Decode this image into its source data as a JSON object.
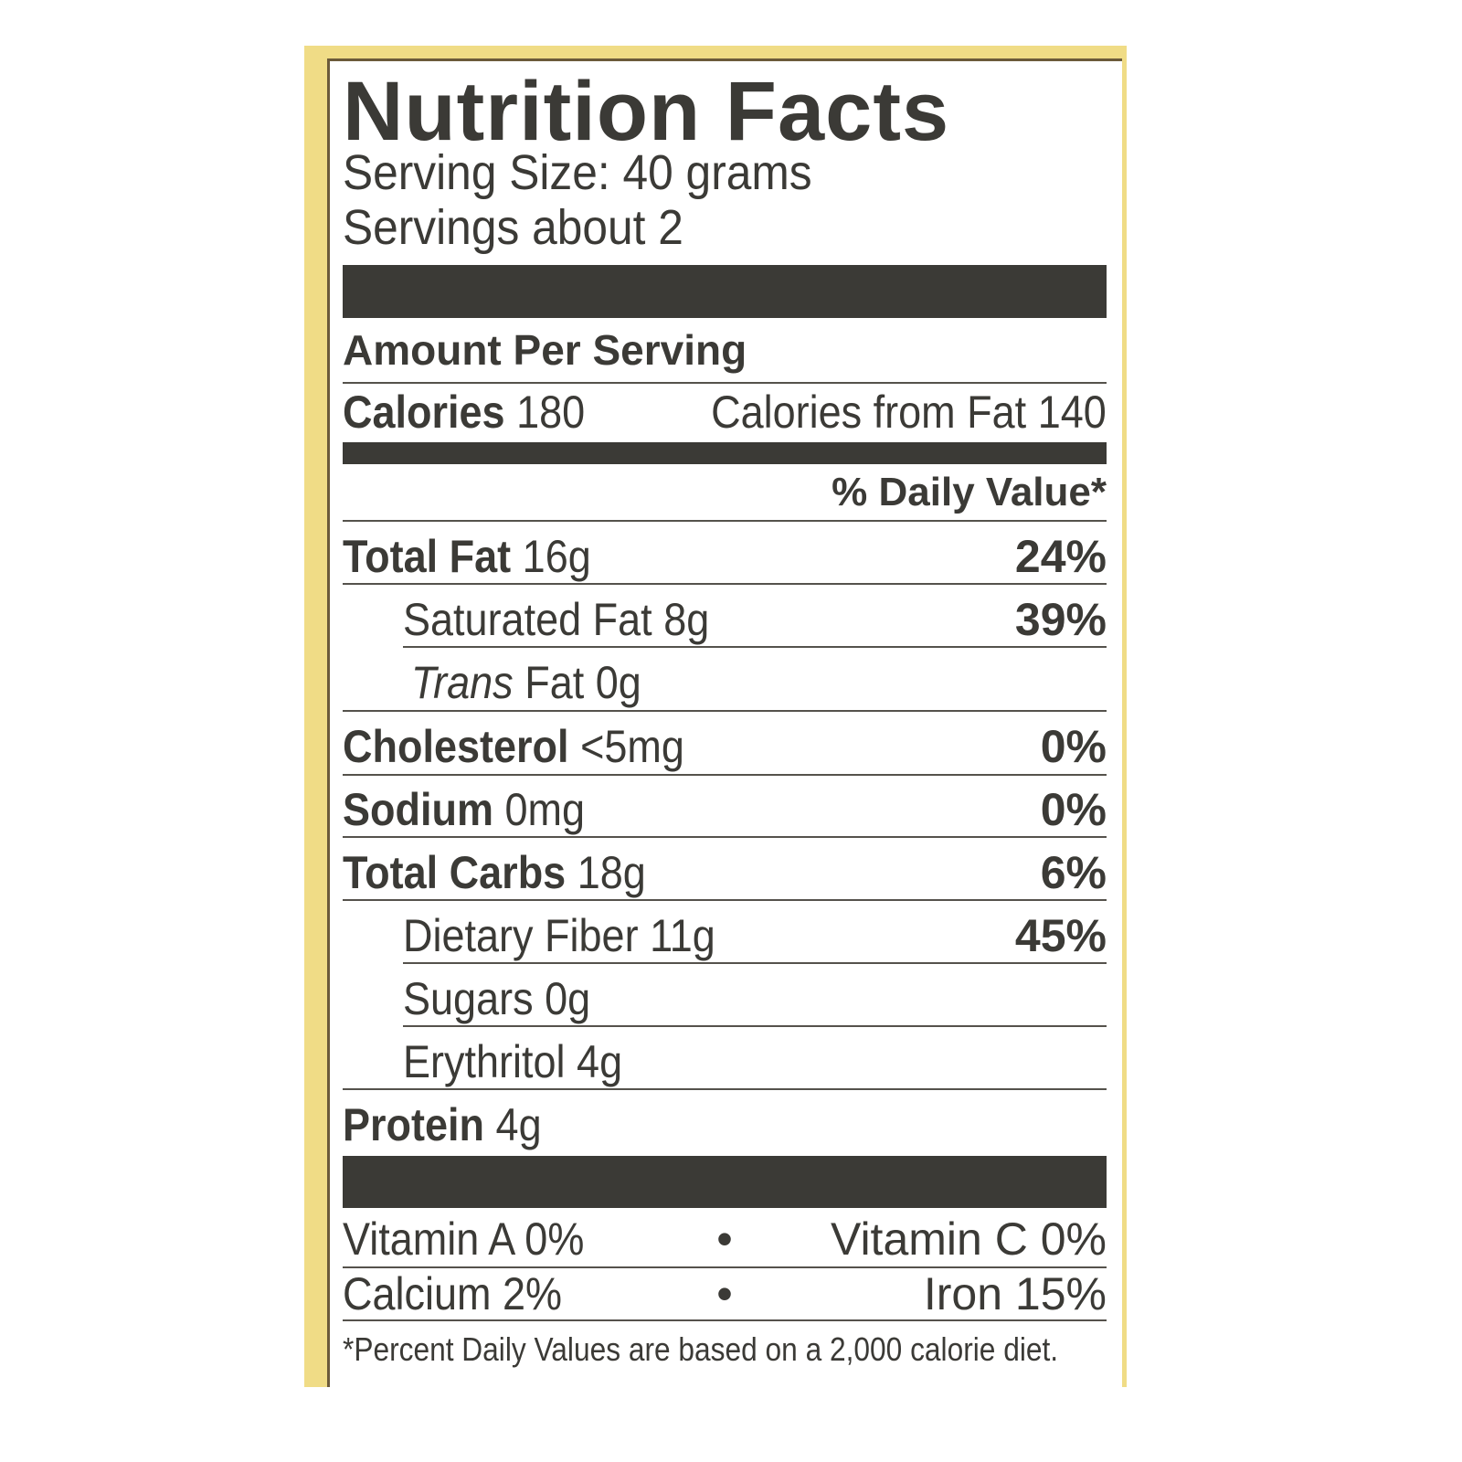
{
  "title": "Nutrition Facts",
  "serving_size": "Serving Size: 40 grams",
  "servings": "Servings about 2",
  "amount_per_serving": "Amount Per Serving",
  "calories": {
    "label": "Calories",
    "value": "180",
    "from_fat_label": "Calories from Fat",
    "from_fat_value": "140"
  },
  "daily_value_header": "% Daily Value*",
  "nutrients": [
    {
      "name": "Total Fat",
      "amount": "16g",
      "dv": "24%"
    },
    {
      "name": "Saturated Fat",
      "amount": "8g",
      "dv": "39%"
    },
    {
      "name": "Trans",
      "name_rest": "Fat",
      "amount": "0g",
      "dv": ""
    },
    {
      "name": "Cholesterol",
      "amount": "<5mg",
      "dv": "0%"
    },
    {
      "name": "Sodium",
      "amount": "0mg",
      "dv": "0%"
    },
    {
      "name": "Total Carbs",
      "amount": "18g",
      "dv": "6%"
    },
    {
      "name": "Dietary Fiber",
      "amount": "11g",
      "dv": "45%"
    },
    {
      "name": "Sugars",
      "amount": "0g",
      "dv": ""
    },
    {
      "name": "Erythritol",
      "amount": "4g",
      "dv": ""
    },
    {
      "name": "Protein",
      "amount": "4g",
      "dv": ""
    }
  ],
  "vitamins": [
    {
      "left": "Vitamin A 0%",
      "right": "Vitamin C 0%"
    },
    {
      "left": "Calcium 2%",
      "right": "Iron 15%"
    }
  ],
  "separator": "•",
  "footnote": "*Percent Daily Values are based on a 2,000 calorie diet.",
  "colors": {
    "ink": "#3b3a36",
    "package": "#f0dc86"
  }
}
